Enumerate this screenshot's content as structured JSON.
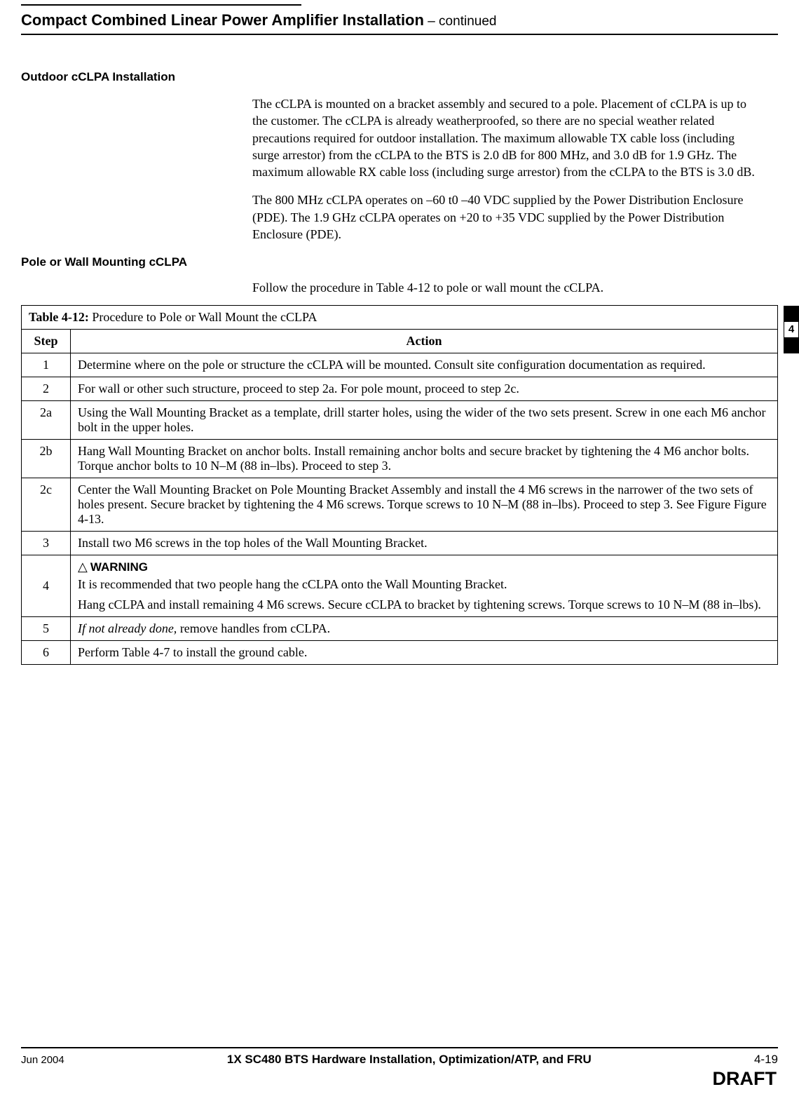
{
  "page": {
    "title_main": "Compact Combined Linear Power Amplifier Installation",
    "title_suffix": " – continued",
    "side_tab_number": "4"
  },
  "sections": {
    "outdoor": {
      "heading": "Outdoor cCLPA Installation",
      "para1": "The cCLPA is mounted on a bracket assembly and secured to a pole. Placement of cCLPA is up to the customer. The cCLPA is already weatherproofed, so there are no special weather related precautions required for outdoor installation. The maximum allowable TX cable loss (including surge arrestor) from the cCLPA to the BTS is 2.0 dB for 800 MHz, and 3.0 dB for 1.9 GHz. The maximum allowable RX cable loss (including surge arrestor) from the cCLPA to the BTS is 3.0 dB.",
      "para2": "The 800 MHz cCLPA operates on –60 t0 –40 VDC supplied by the Power Distribution Enclosure (PDE).  The 1.9 GHz  cCLPA operates on +20 to +35 VDC supplied by the Power Distribution Enclosure (PDE)."
    },
    "mounting": {
      "heading": "Pole or Wall Mounting cCLPA",
      "intro": "Follow the procedure in Table 4-12 to pole or wall mount the cCLPA."
    }
  },
  "table": {
    "title_bold": "Table 4-12:",
    "title_rest": " Procedure to Pole or Wall Mount the cCLPA",
    "header_step": "Step",
    "header_action": "Action",
    "rows": {
      "r1": {
        "step": "1",
        "action": "Determine where on the pole or structure the cCLPA will be mounted. Consult site configuration documentation as required."
      },
      "r2": {
        "step": "2",
        "action": "For wall or other such structure, proceed to step 2a. For pole mount, proceed to step 2c."
      },
      "r2a": {
        "step": "2a",
        "action": "Using the Wall Mounting Bracket as a template, drill starter holes, using the wider of the two sets present. Screw in one each M6 anchor bolt in the upper holes."
      },
      "r2b": {
        "step": "2b",
        "action": "Hang Wall Mounting Bracket on anchor bolts.  Install remaining anchor bolts and secure bracket by tightening the 4 M6 anchor bolts. Torque anchor bolts to 10 N–M (88 in–lbs). Proceed to step 3."
      },
      "r2c": {
        "step": "2c",
        "action": "Center the Wall Mounting Bracket on Pole Mounting Bracket Assembly and install the 4 M6 screws in the narrower of the two sets of holes present. Secure bracket by tightening the 4 M6 screws. Torque screws to 10 N–M (88 in–lbs).  Proceed to step 3. See Figure Figure 4-13."
      },
      "r3": {
        "step": "3",
        "action": "Install two M6 screws in the top holes of the Wall Mounting Bracket."
      },
      "r4": {
        "step": "4",
        "warning_label": "WARNING",
        "warning_text": "It is recommended that two people hang the cCLPA onto the Wall Mounting Bracket.",
        "action": "Hang cCLPA and install remaining 4 M6 screws. Secure cCLPA to bracket by tightening screws. Torque screws to 10 N–M (88 in–lbs)."
      },
      "r5": {
        "step": "5",
        "italic_prefix": "If not already done,",
        "action_rest": " remove handles from cCLPA."
      },
      "r6": {
        "step": "6",
        "action": "Perform  Table 4-7 to install the ground cable."
      }
    }
  },
  "footer": {
    "date": "Jun 2004",
    "center": "1X SC480 BTS Hardware Installation, Optimization/ATP, and FRU",
    "pageno": "4-19",
    "draft": "DRAFT"
  }
}
